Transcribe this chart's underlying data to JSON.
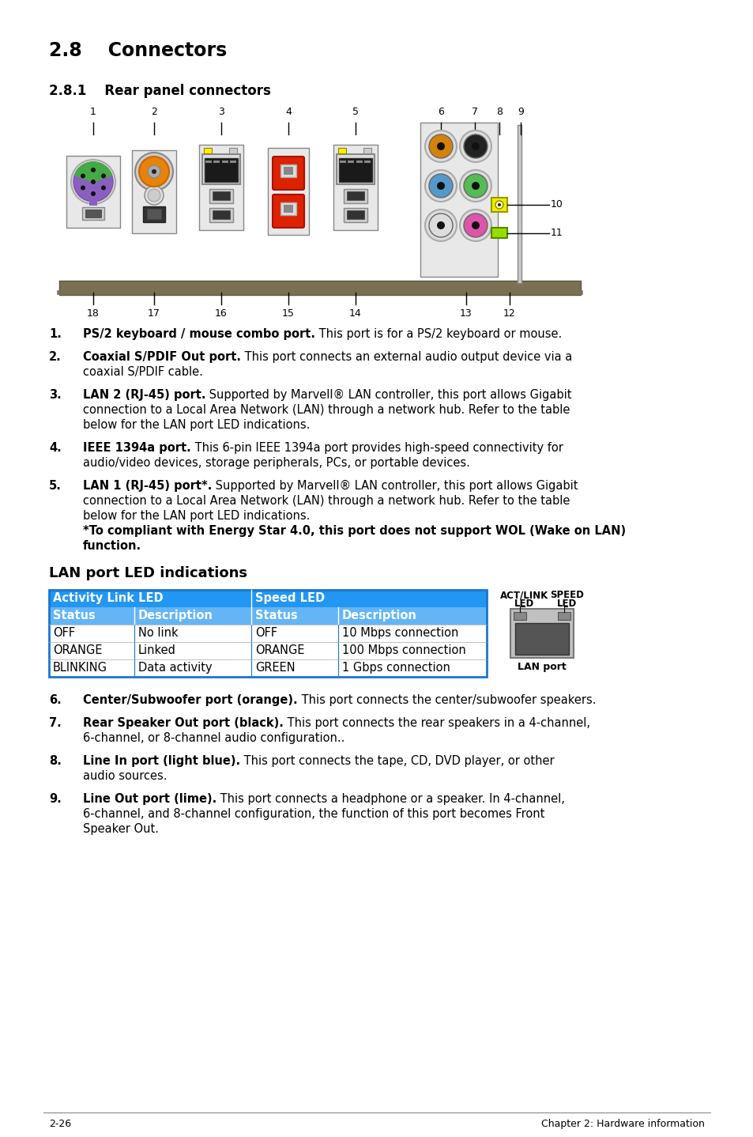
{
  "bg_color": "#ffffff",
  "title": "2.8    Connectors",
  "subtitle": "2.8.1    Rear panel connectors",
  "title_fs": 17,
  "subtitle_fs": 12,
  "items": [
    {
      "num": "1.",
      "bold": "PS/2 keyboard / mouse combo port.",
      "text": " This port is for a PS/2 keyboard or mouse."
    },
    {
      "num": "2.",
      "bold": "Coaxial S/PDIF Out port.",
      "text": " This port connects an external audio output device via a coaxial S/PDIF cable."
    },
    {
      "num": "3.",
      "bold": "LAN 2 (RJ-45) port.",
      "text": " Supported by Marvell® LAN controller, this port allows Gigabit connection to a Local Area Network (LAN) through a network hub. Refer to the table below for the LAN port LED indications."
    },
    {
      "num": "4.",
      "bold": "IEEE 1394a port.",
      "text": " This 6-pin IEEE 1394a port provides high-speed connectivity for audio/video devices, storage peripherals, PCs, or portable devices."
    },
    {
      "num": "5.",
      "bold": "LAN 1 (RJ-45) port*.",
      "text": " Supported by Marvell® LAN controller, this port allows Gigabit connection to a Local Area Network (LAN) through a network hub. Refer to the table below for the LAN port LED indications.",
      "bold2": "*To compliant with Energy Star 4.0, this port does not support WOL (Wake on LAN) function."
    }
  ],
  "items2": [
    {
      "num": "6.",
      "bold": "Center/Subwoofer port (orange).",
      "text": " This port connects the center/subwoofer speakers."
    },
    {
      "num": "7.",
      "bold": "Rear Speaker Out port (black).",
      "text": " This port connects the rear speakers in a 4-channel, 6-channel, or 8-channel audio configuration.."
    },
    {
      "num": "8.",
      "bold": "Line In port (light blue).",
      "text": " This port connects the tape, CD, DVD player, or other audio sources."
    },
    {
      "num": "9.",
      "bold": "Line Out port (lime).",
      "text": " This port connects a headphone or a speaker. In 4-channel, 6-channel, and 8-channel configuration, the function of this port becomes Front Speaker Out."
    }
  ],
  "lan_title": "LAN port LED indications",
  "table_header_bg": "#2196F3",
  "table_subheader_bg": "#64B5F6",
  "table_border": "#1976D2",
  "table_rows": [
    [
      "OFF",
      "No link",
      "OFF",
      "10 Mbps connection"
    ],
    [
      "ORANGE",
      "Linked",
      "ORANGE",
      "100 Mbps connection"
    ],
    [
      "BLINKING",
      "Data activity",
      "GREEN",
      "1 Gbps connection"
    ]
  ],
  "footer_left": "2-26",
  "footer_right": "Chapter 2: Hardware information"
}
